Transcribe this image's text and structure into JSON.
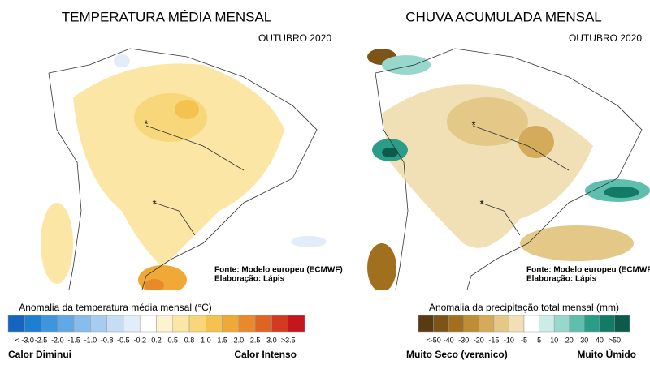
{
  "panels": [
    {
      "title": "TEMPERATURA MÉDIA MENSAL",
      "subtitle": "OUTUBRO 2020",
      "source": [
        "Fonte: Modelo europeu (ECMWF)",
        "Elaboração: Lápis"
      ],
      "legend": {
        "title": "Anomalia da temperatura média mensal (°C)",
        "labels": [
          "< -3.0",
          "-2.5",
          "-2.0",
          "-1.5",
          "-1.0",
          "-0.8",
          "-0.5",
          "-0.2",
          "0.2",
          "0.5",
          "0.8",
          "1.0",
          "1.5",
          "2.0",
          "2.5",
          "3.0",
          ">3.5"
        ],
        "colors": [
          "#1565c0",
          "#1e7fd0",
          "#3f95dc",
          "#62a9e4",
          "#86bdea",
          "#a6cdef",
          "#c5def4",
          "#e1eef9",
          "#ffffff",
          "#fdf3cf",
          "#fbe6a6",
          "#f8d67a",
          "#f4c24e",
          "#f0a937",
          "#e88a2b",
          "#df6424",
          "#d43a1f",
          "#c4161c"
        ],
        "low": "Calor Diminui",
        "high": "Calor Intenso"
      }
    },
    {
      "title": "CHUVA ACUMULADA MENSAL",
      "subtitle": "OUTUBRO 2020",
      "source": [
        "Fonte: Modelo europeu (ECMWF)",
        "Elaboração: Lápis"
      ],
      "legend": {
        "title": "Anomalia da precipitação total mensal (mm)",
        "labels": [
          "<-50",
          "-40",
          "-30",
          "-20",
          "-15",
          "-10",
          "-5",
          "5",
          "10",
          "20",
          "30",
          "40",
          ">50"
        ],
        "colors": [
          "#5a3a12",
          "#7d5418",
          "#a0701f",
          "#bf8d36",
          "#d4ab5a",
          "#e4c888",
          "#f1e0b5",
          "#ffffff",
          "#cdece6",
          "#98d8cc",
          "#5fbfae",
          "#2b9c87",
          "#137a66",
          "#0b5a4a"
        ],
        "low": "Muito Seco  (veranico)",
        "high": "Muito Úmido"
      }
    }
  ]
}
